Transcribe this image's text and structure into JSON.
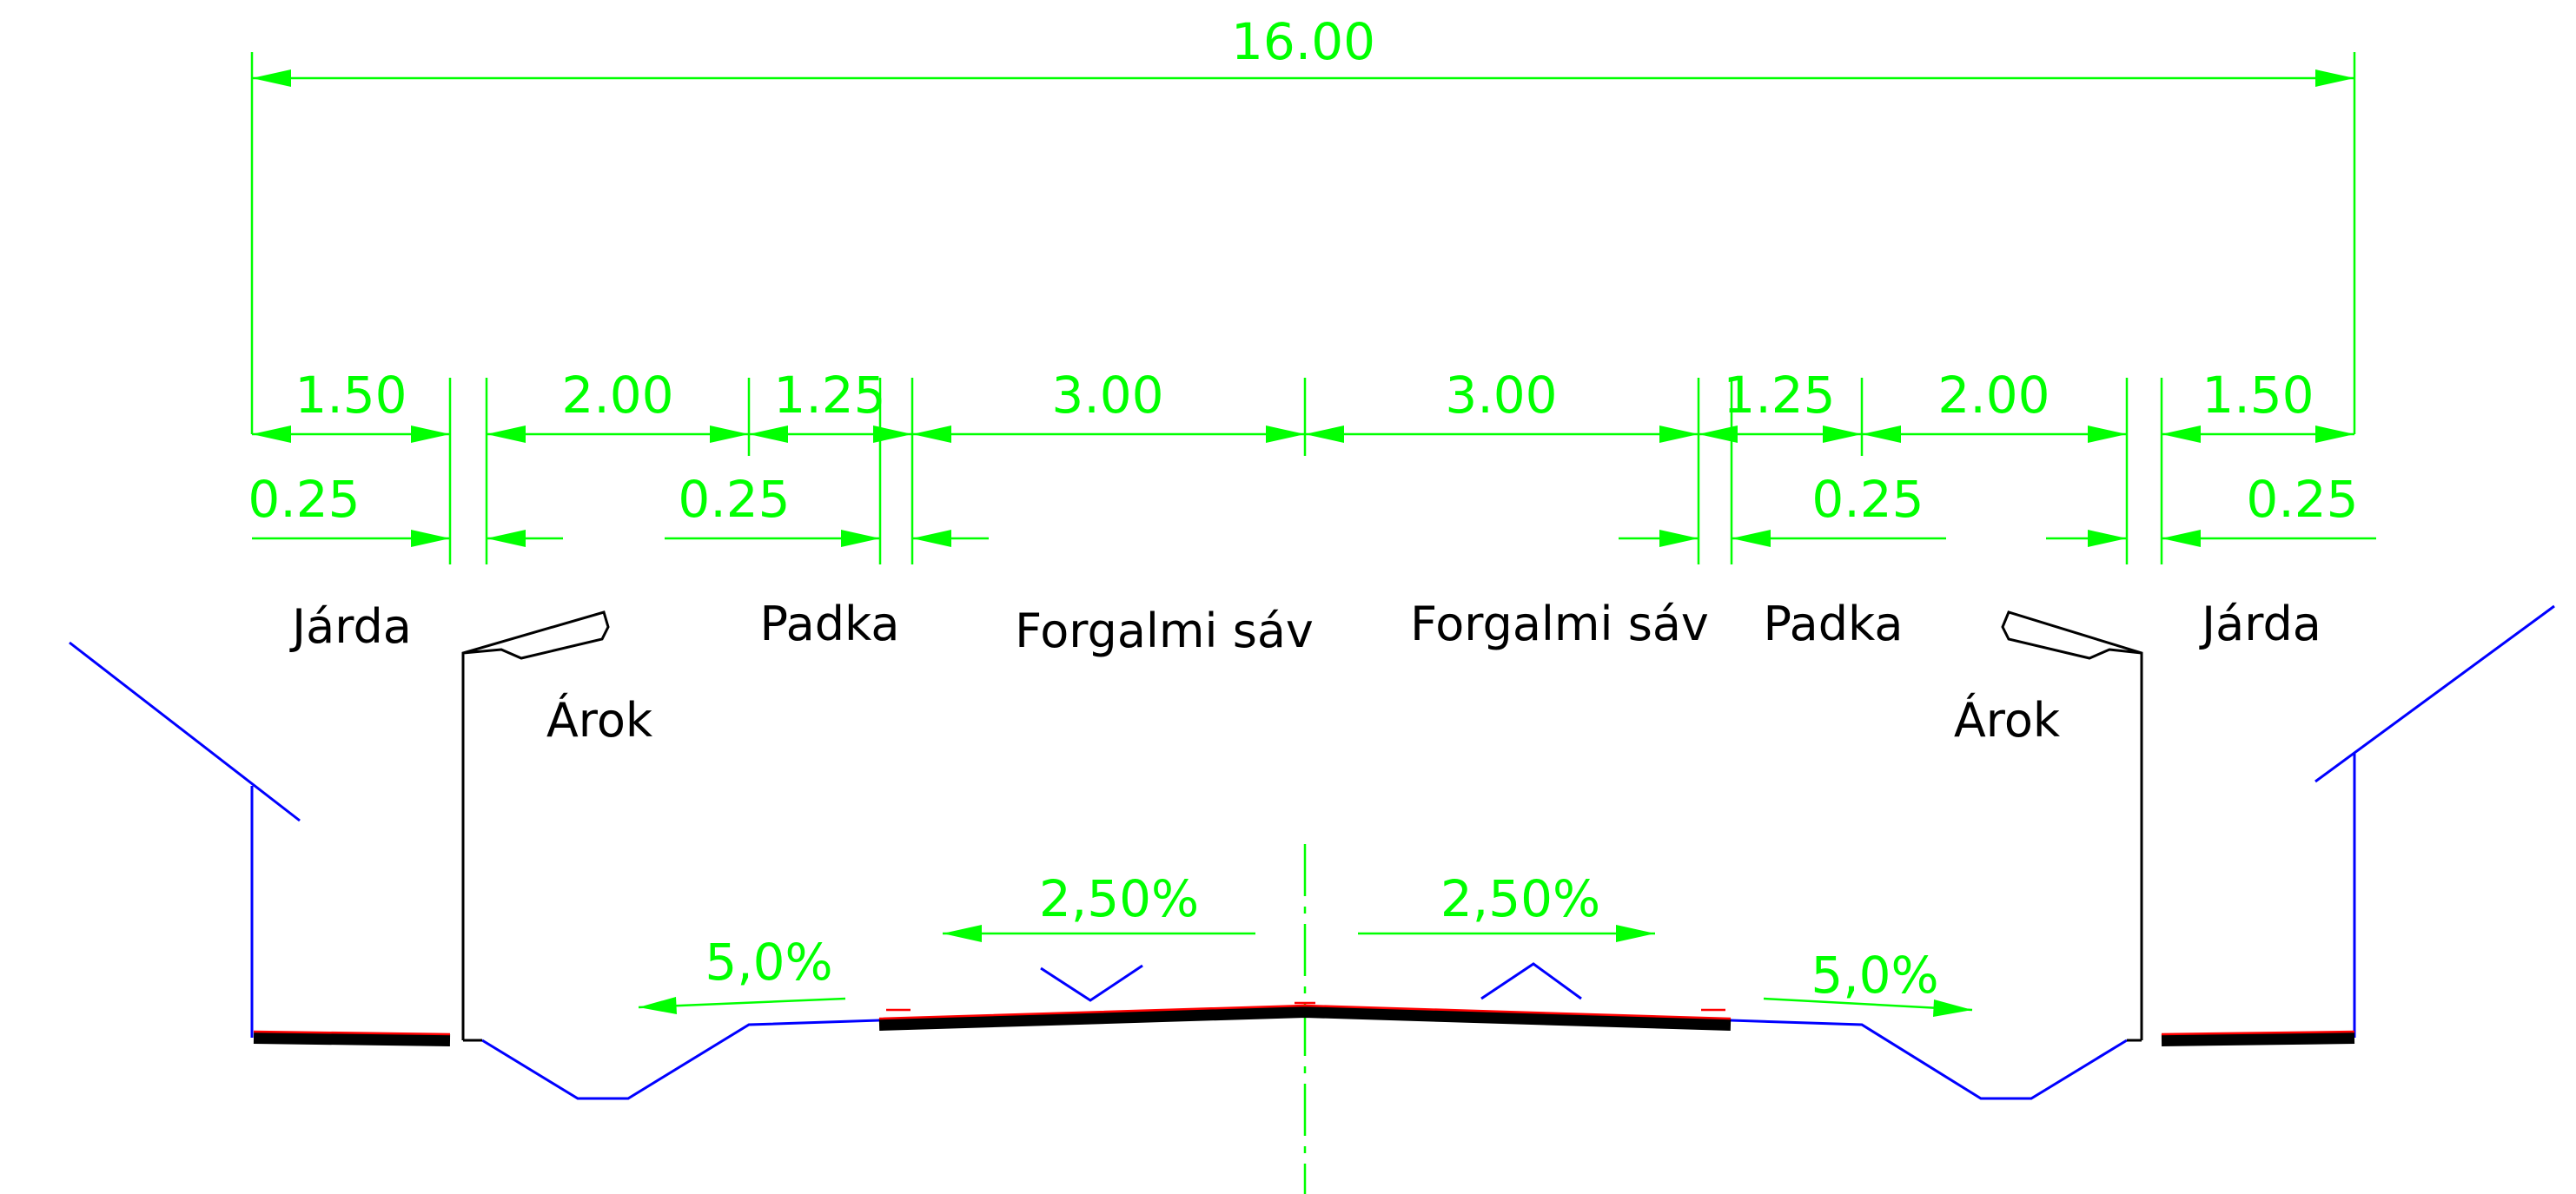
{
  "dimensions": {
    "total": "16.00",
    "left": {
      "jarda": "1.50",
      "arok": "2.00",
      "padka": "1.25",
      "lane": "3.00",
      "edge_outer": "0.25",
      "edge_inner": "0.25"
    },
    "right": {
      "lane": "3.00",
      "padka": "1.25",
      "arok": "2.00",
      "jarda": "1.50",
      "edge_inner": "0.25",
      "edge_outer": "0.25"
    }
  },
  "labels": {
    "left_jarda": "Járda",
    "left_arok": "Árok",
    "left_padka": "Padka",
    "left_lane": "Forgalmi sáv",
    "right_lane": "Forgalmi sáv",
    "right_padka": "Padka",
    "right_arok": "Árok",
    "right_jarda": "Járda"
  },
  "slopes": {
    "left_lane": "2,50%",
    "right_lane": "2,50%",
    "left_ditch": "5,0%",
    "right_ditch": "5,0%"
  },
  "colors": {
    "dimension": "#00ff00",
    "terrain": "#0000ff",
    "structure": "#000000",
    "marker": "#ff0000"
  }
}
